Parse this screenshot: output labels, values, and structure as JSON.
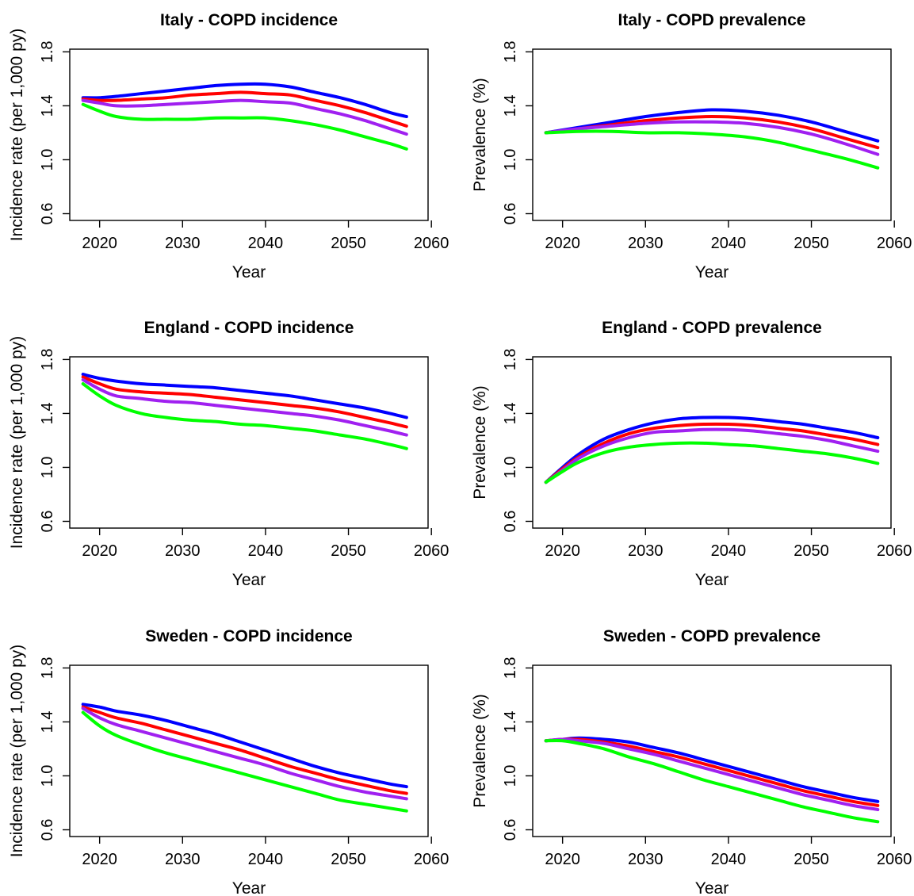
{
  "chart_data": [
    {
      "type": "line",
      "title": "Italy - COPD incidence",
      "xlabel": "Year",
      "ylabel": "Incidence rate (per 1,000 py)",
      "xlim": [
        2018,
        2060
      ],
      "ylim": [
        0.6,
        1.8
      ],
      "xticks": [
        "2020",
        "2030",
        "2040",
        "2050",
        "2060"
      ],
      "yticks": [
        "0.6",
        "1.0",
        "1.4",
        "1.8"
      ],
      "grid": false,
      "x": [
        2018,
        2020,
        2022,
        2025,
        2028,
        2031,
        2034,
        2037,
        2040,
        2043,
        2046,
        2049,
        2052,
        2055,
        2057
      ],
      "series": [
        {
          "color": "#0000ff",
          "values": [
            1.46,
            1.46,
            1.47,
            1.49,
            1.51,
            1.53,
            1.55,
            1.56,
            1.56,
            1.54,
            1.5,
            1.46,
            1.41,
            1.35,
            1.32
          ]
        },
        {
          "color": "#ff0000",
          "values": [
            1.45,
            1.44,
            1.44,
            1.45,
            1.46,
            1.48,
            1.49,
            1.5,
            1.49,
            1.48,
            1.44,
            1.4,
            1.35,
            1.29,
            1.25
          ]
        },
        {
          "color": "#a020f0",
          "values": [
            1.44,
            1.42,
            1.4,
            1.4,
            1.41,
            1.42,
            1.43,
            1.44,
            1.43,
            1.42,
            1.38,
            1.34,
            1.29,
            1.23,
            1.19
          ]
        },
        {
          "color": "#00ff00",
          "values": [
            1.41,
            1.36,
            1.32,
            1.3,
            1.3,
            1.3,
            1.31,
            1.31,
            1.31,
            1.29,
            1.26,
            1.22,
            1.17,
            1.12,
            1.08
          ]
        }
      ]
    },
    {
      "type": "line",
      "title": "Italy - COPD prevalence",
      "xlabel": "Year",
      "ylabel": "Prevalence (%)",
      "xlim": [
        2018,
        2060
      ],
      "ylim": [
        0.6,
        1.8
      ],
      "xticks": [
        "2020",
        "2030",
        "2040",
        "2050",
        "2060"
      ],
      "yticks": [
        "0.6",
        "1.0",
        "1.4",
        "1.8"
      ],
      "grid": false,
      "x": [
        2018,
        2022,
        2026,
        2030,
        2034,
        2038,
        2042,
        2046,
        2050,
        2054,
        2058
      ],
      "series": [
        {
          "color": "#0000ff",
          "values": [
            1.2,
            1.24,
            1.28,
            1.32,
            1.35,
            1.37,
            1.36,
            1.33,
            1.28,
            1.21,
            1.14
          ]
        },
        {
          "color": "#ff0000",
          "values": [
            1.2,
            1.23,
            1.26,
            1.29,
            1.31,
            1.32,
            1.31,
            1.28,
            1.23,
            1.16,
            1.09
          ]
        },
        {
          "color": "#a020f0",
          "values": [
            1.2,
            1.23,
            1.25,
            1.27,
            1.28,
            1.28,
            1.27,
            1.24,
            1.19,
            1.12,
            1.04
          ]
        },
        {
          "color": "#00ff00",
          "values": [
            1.2,
            1.21,
            1.21,
            1.2,
            1.2,
            1.19,
            1.17,
            1.13,
            1.07,
            1.01,
            0.94
          ]
        }
      ]
    },
    {
      "type": "line",
      "title": "England - COPD incidence",
      "xlabel": "Year",
      "ylabel": "Incidence rate (per 1,000 py)",
      "xlim": [
        2018,
        2060
      ],
      "ylim": [
        0.6,
        1.8
      ],
      "xticks": [
        "2020",
        "2030",
        "2040",
        "2050",
        "2060"
      ],
      "yticks": [
        "0.6",
        "1.0",
        "1.4",
        "1.8"
      ],
      "grid": false,
      "x": [
        2018,
        2020,
        2022,
        2025,
        2028,
        2031,
        2034,
        2037,
        2040,
        2043,
        2046,
        2049,
        2052,
        2055,
        2057
      ],
      "series": [
        {
          "color": "#0000ff",
          "values": [
            1.69,
            1.66,
            1.64,
            1.62,
            1.61,
            1.6,
            1.59,
            1.57,
            1.55,
            1.53,
            1.5,
            1.47,
            1.44,
            1.4,
            1.37
          ]
        },
        {
          "color": "#ff0000",
          "values": [
            1.67,
            1.62,
            1.58,
            1.56,
            1.55,
            1.54,
            1.52,
            1.5,
            1.48,
            1.46,
            1.44,
            1.41,
            1.37,
            1.33,
            1.3
          ]
        },
        {
          "color": "#a020f0",
          "values": [
            1.65,
            1.58,
            1.53,
            1.51,
            1.49,
            1.48,
            1.46,
            1.44,
            1.42,
            1.4,
            1.38,
            1.35,
            1.31,
            1.27,
            1.24
          ]
        },
        {
          "color": "#00ff00",
          "values": [
            1.62,
            1.53,
            1.46,
            1.4,
            1.37,
            1.35,
            1.34,
            1.32,
            1.31,
            1.29,
            1.27,
            1.24,
            1.21,
            1.17,
            1.14
          ]
        }
      ]
    },
    {
      "type": "line",
      "title": "England - COPD prevalence",
      "xlabel": "Year",
      "ylabel": "Prevalence (%)",
      "xlim": [
        2018,
        2060
      ],
      "ylim": [
        0.6,
        1.8
      ],
      "xticks": [
        "2020",
        "2030",
        "2040",
        "2050",
        "2060"
      ],
      "yticks": [
        "0.6",
        "1.0",
        "1.4",
        "1.8"
      ],
      "grid": false,
      "x": [
        2018,
        2020,
        2022,
        2025,
        2028,
        2031,
        2034,
        2037,
        2040,
        2043,
        2046,
        2049,
        2052,
        2055,
        2058
      ],
      "series": [
        {
          "color": "#0000ff",
          "values": [
            0.89,
            1.0,
            1.1,
            1.21,
            1.28,
            1.33,
            1.36,
            1.37,
            1.37,
            1.36,
            1.34,
            1.32,
            1.29,
            1.26,
            1.22
          ]
        },
        {
          "color": "#ff0000",
          "values": [
            0.89,
            0.99,
            1.08,
            1.18,
            1.25,
            1.29,
            1.31,
            1.32,
            1.32,
            1.31,
            1.29,
            1.27,
            1.24,
            1.21,
            1.17
          ]
        },
        {
          "color": "#a020f0",
          "values": [
            0.89,
            0.98,
            1.07,
            1.16,
            1.22,
            1.26,
            1.27,
            1.28,
            1.28,
            1.27,
            1.25,
            1.23,
            1.2,
            1.16,
            1.12
          ]
        },
        {
          "color": "#00ff00",
          "values": [
            0.89,
            0.97,
            1.04,
            1.11,
            1.15,
            1.17,
            1.18,
            1.18,
            1.17,
            1.16,
            1.14,
            1.12,
            1.1,
            1.07,
            1.03
          ]
        }
      ]
    },
    {
      "type": "line",
      "title": "Sweden - COPD incidence",
      "xlabel": "Year",
      "ylabel": "Incidence rate (per 1,000 py)",
      "xlim": [
        2018,
        2060
      ],
      "ylim": [
        0.6,
        1.8
      ],
      "xticks": [
        "2020",
        "2030",
        "2040",
        "2050",
        "2060"
      ],
      "yticks": [
        "0.6",
        "1.0",
        "1.4",
        "1.8"
      ],
      "grid": false,
      "x": [
        2018,
        2020,
        2022,
        2025,
        2028,
        2031,
        2034,
        2037,
        2040,
        2043,
        2046,
        2049,
        2052,
        2055,
        2057
      ],
      "series": [
        {
          "color": "#0000ff",
          "values": [
            1.53,
            1.51,
            1.48,
            1.45,
            1.41,
            1.36,
            1.31,
            1.25,
            1.19,
            1.13,
            1.07,
            1.02,
            0.98,
            0.94,
            0.92
          ]
        },
        {
          "color": "#ff0000",
          "values": [
            1.51,
            1.47,
            1.43,
            1.39,
            1.34,
            1.29,
            1.24,
            1.19,
            1.13,
            1.07,
            1.02,
            0.97,
            0.93,
            0.89,
            0.87
          ]
        },
        {
          "color": "#a020f0",
          "values": [
            1.5,
            1.43,
            1.38,
            1.33,
            1.28,
            1.23,
            1.18,
            1.13,
            1.08,
            1.02,
            0.97,
            0.92,
            0.88,
            0.85,
            0.83
          ]
        },
        {
          "color": "#00ff00",
          "values": [
            1.47,
            1.37,
            1.3,
            1.23,
            1.17,
            1.12,
            1.07,
            1.02,
            0.97,
            0.92,
            0.87,
            0.82,
            0.79,
            0.76,
            0.74
          ]
        }
      ]
    },
    {
      "type": "line",
      "title": "Sweden - COPD prevalence",
      "xlabel": "Year",
      "ylabel": "Prevalence (%)",
      "xlim": [
        2018,
        2060
      ],
      "ylim": [
        0.6,
        1.8
      ],
      "xticks": [
        "2020",
        "2030",
        "2040",
        "2050",
        "2060"
      ],
      "yticks": [
        "0.6",
        "1.0",
        "1.4",
        "1.8"
      ],
      "grid": false,
      "x": [
        2018,
        2020,
        2022,
        2025,
        2028,
        2031,
        2034,
        2037,
        2040,
        2043,
        2046,
        2049,
        2052,
        2055,
        2058
      ],
      "series": [
        {
          "color": "#0000ff",
          "values": [
            1.26,
            1.27,
            1.28,
            1.27,
            1.25,
            1.21,
            1.17,
            1.12,
            1.07,
            1.02,
            0.97,
            0.92,
            0.88,
            0.84,
            0.81
          ]
        },
        {
          "color": "#ff0000",
          "values": [
            1.26,
            1.27,
            1.27,
            1.25,
            1.22,
            1.18,
            1.14,
            1.09,
            1.04,
            0.99,
            0.94,
            0.89,
            0.85,
            0.81,
            0.78
          ]
        },
        {
          "color": "#a020f0",
          "values": [
            1.26,
            1.27,
            1.26,
            1.24,
            1.2,
            1.16,
            1.11,
            1.06,
            1.01,
            0.96,
            0.91,
            0.86,
            0.82,
            0.78,
            0.75
          ]
        },
        {
          "color": "#00ff00",
          "values": [
            1.26,
            1.26,
            1.24,
            1.2,
            1.14,
            1.09,
            1.03,
            0.97,
            0.92,
            0.87,
            0.82,
            0.77,
            0.73,
            0.69,
            0.66
          ]
        }
      ]
    }
  ]
}
